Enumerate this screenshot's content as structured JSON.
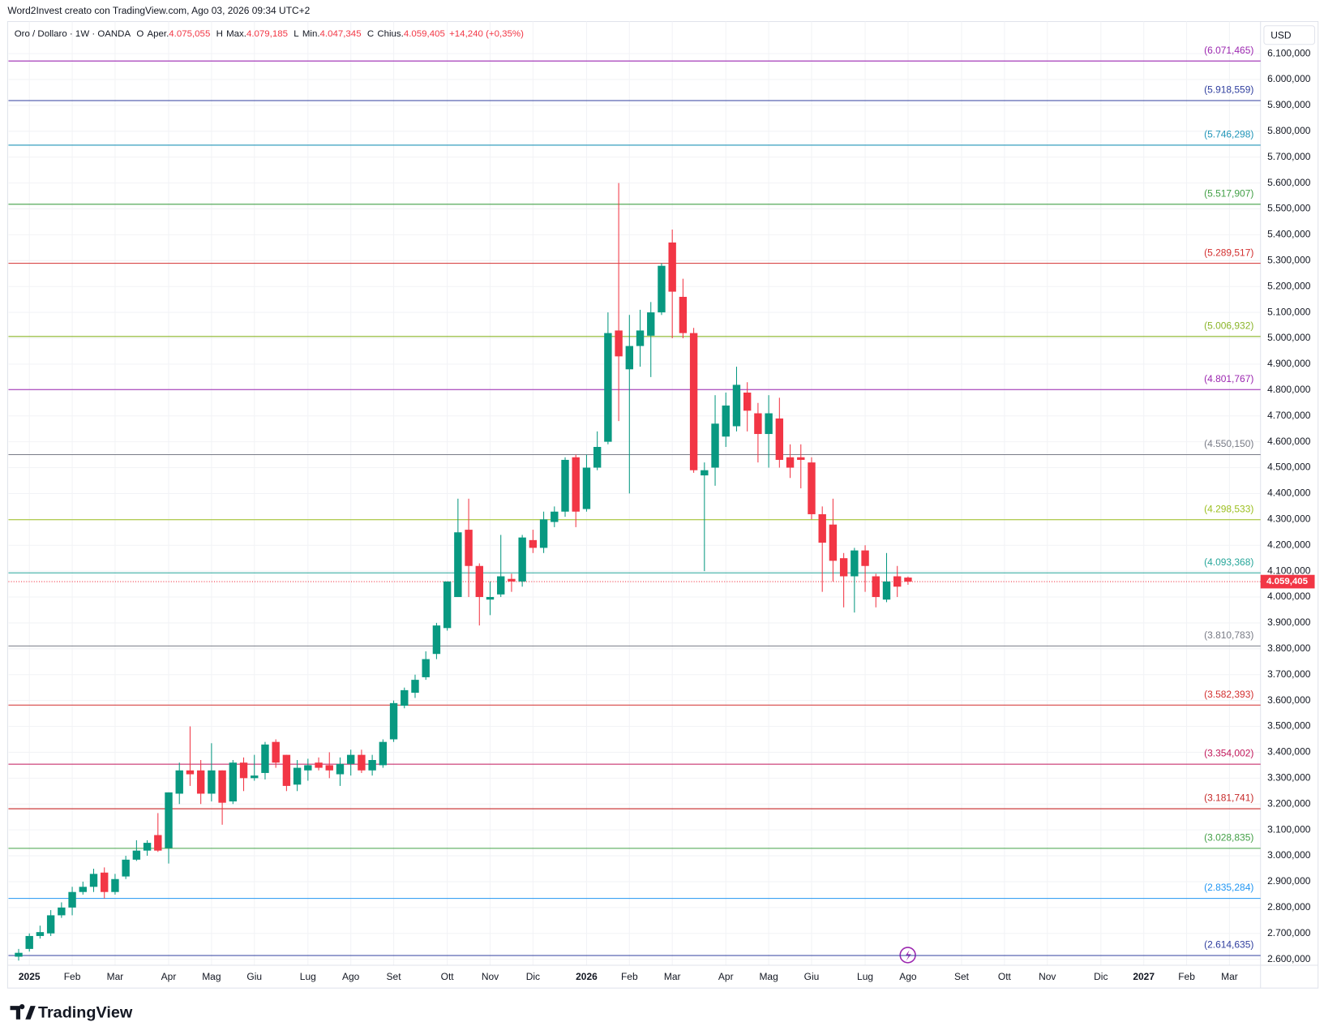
{
  "chart_data": {
    "type": "candlestick",
    "attribution": "Word2Invest creato con TradingView.com, Ago 03, 2026 09:34 UTC+2",
    "legend": {
      "name": "Oro / Dollaro · 1W · OANDA",
      "fields": [
        {
          "key": "O",
          "label": "Aper.",
          "value": "4.075,055"
        },
        {
          "key": "H",
          "label": "Max.",
          "value": "4.079,185"
        },
        {
          "key": "L",
          "label": "Min.",
          "value": "4.047,345"
        },
        {
          "key": "C",
          "label": "Chius.",
          "value": "4.059,405"
        }
      ],
      "change": "+14,240 (+0,35%)"
    },
    "currency": "USD",
    "logo": "TradingView",
    "up_color": "#089981",
    "down_color": "#f23645",
    "grid": true,
    "x": [
      0,
      1,
      2,
      3,
      4,
      5,
      6,
      7,
      8,
      9,
      10,
      11,
      12,
      13,
      14,
      15,
      16,
      17,
      18,
      19,
      20,
      21,
      22,
      23,
      24,
      25,
      26,
      27,
      28,
      29,
      30,
      31,
      32,
      33,
      34,
      35,
      36,
      37,
      38,
      39,
      40,
      41,
      42,
      43,
      44,
      45,
      46,
      47,
      48,
      49,
      50,
      51,
      52,
      53,
      54,
      55,
      56,
      57,
      58,
      59,
      60,
      61,
      62,
      63,
      64,
      65,
      66,
      67,
      68,
      69,
      70,
      71,
      72,
      73,
      74,
      75,
      76,
      77,
      78,
      79,
      80,
      81,
      82,
      83
    ],
    "open": [
      2610,
      2640,
      2690,
      2700,
      2770,
      2800,
      2860,
      2880,
      2935,
      2860,
      2920,
      2985,
      3020,
      3080,
      3030,
      3240,
      3330,
      3330,
      3240,
      3330,
      3210,
      3360,
      3300,
      3320,
      3440,
      3390,
      3275,
      3330,
      3360,
      3350,
      3315,
      3355,
      3390,
      3330,
      3350,
      3450,
      3580,
      3630,
      3690,
      3780,
      3880,
      4000,
      4260,
      4120,
      3990,
      4010,
      4070,
      4060,
      4220,
      4190,
      4290,
      4330,
      4540,
      4340,
      4500,
      4600,
      5030,
      4880,
      4970,
      5010,
      5100,
      5370,
      5160,
      5020,
      4470,
      4500,
      4620,
      4660,
      4790,
      4710,
      4630,
      4690,
      4540,
      4540,
      4520,
      4320,
      4280,
      4150,
      4080,
      4180,
      4080,
      3990,
      4080,
      4075.055
    ],
    "high": [
      2640,
      2700,
      2730,
      2790,
      2820,
      2880,
      2900,
      2950,
      2955,
      2930,
      3000,
      3060,
      3060,
      3165,
      3245,
      3360,
      3500,
      3370,
      3435,
      3330,
      3370,
      3380,
      3390,
      3440,
      3450,
      3390,
      3370,
      3375,
      3380,
      3400,
      3380,
      3410,
      3410,
      3390,
      3450,
      3600,
      3650,
      3700,
      3790,
      3900,
      4060,
      4380,
      4380,
      4130,
      4060,
      4240,
      4090,
      4240,
      4260,
      4330,
      4350,
      4540,
      4550,
      4550,
      4640,
      5100,
      5600,
      5090,
      5110,
      5140,
      5290,
      5420,
      5230,
      5040,
      4520,
      4780,
      4790,
      4890,
      4830,
      4750,
      4780,
      4770,
      4590,
      4590,
      4540,
      4350,
      4380,
      4170,
      4190,
      4200,
      4090,
      4170,
      4120,
      4079.185
    ],
    "low": [
      2595,
      2630,
      2680,
      2690,
      2760,
      2770,
      2850,
      2860,
      2835,
      2850,
      2910,
      2980,
      3000,
      3015,
      2970,
      3200,
      3270,
      3200,
      3210,
      3120,
      3200,
      3250,
      3290,
      3295,
      3340,
      3250,
      3250,
      3290,
      3330,
      3300,
      3270,
      3310,
      3320,
      3310,
      3340,
      3440,
      3570,
      3610,
      3680,
      3760,
      3870,
      4000,
      4000,
      3890,
      3930,
      4000,
      4020,
      4040,
      4170,
      4170,
      4270,
      4310,
      4270,
      4330,
      4490,
      4590,
      4680,
      4400,
      4890,
      4850,
      5090,
      5000,
      5000,
      4480,
      4100,
      4430,
      4580,
      4640,
      4640,
      4520,
      4500,
      4500,
      4460,
      4420,
      4300,
      4020,
      4060,
      3960,
      3940,
      4020,
      3960,
      3980,
      4000,
      4047.345
    ],
    "close": [
      2625,
      2690,
      2705,
      2770,
      2800,
      2860,
      2880,
      2930,
      2860,
      2910,
      2985,
      3020,
      3050,
      3020,
      3245,
      3330,
      3315,
      3240,
      3330,
      3205,
      3360,
      3300,
      3310,
      3430,
      3360,
      3270,
      3340,
      3350,
      3340,
      3330,
      3355,
      3390,
      3330,
      3370,
      3440,
      3590,
      3640,
      3680,
      3760,
      3890,
      4060,
      4250,
      4120,
      4000,
      4000,
      4080,
      4060,
      4230,
      4190,
      4300,
      4330,
      4530,
      4330,
      4500,
      4580,
      5020,
      4930,
      4970,
      5030,
      5100,
      5280,
      5180,
      5020,
      4490,
      4490,
      4670,
      4740,
      4820,
      4720,
      4630,
      4710,
      4530,
      4500,
      4530,
      4320,
      4210,
      4140,
      4080,
      4180,
      4120,
      4000,
      4060,
      4040,
      4059.405
    ],
    "last_price": {
      "value": 4059.405,
      "label": "4.059,405"
    },
    "xlim": [
      -0.95,
      115.9
    ],
    "xticks": [
      {
        "value": 1,
        "label": "2025"
      },
      {
        "value": 5,
        "label": "Feb"
      },
      {
        "value": 9,
        "label": "Mar"
      },
      {
        "value": 14,
        "label": "Apr"
      },
      {
        "value": 18,
        "label": "Mag"
      },
      {
        "value": 22,
        "label": "Giu"
      },
      {
        "value": 27,
        "label": "Lug"
      },
      {
        "value": 31,
        "label": "Ago"
      },
      {
        "value": 35,
        "label": "Set"
      },
      {
        "value": 40,
        "label": "Ott"
      },
      {
        "value": 44,
        "label": "Nov"
      },
      {
        "value": 48,
        "label": "Dic"
      },
      {
        "value": 53,
        "label": "2026"
      },
      {
        "value": 57,
        "label": "Feb"
      },
      {
        "value": 61,
        "label": "Mar"
      },
      {
        "value": 66,
        "label": "Apr"
      },
      {
        "value": 70,
        "label": "Mag"
      },
      {
        "value": 74,
        "label": "Giu"
      },
      {
        "value": 79,
        "label": "Lug"
      },
      {
        "value": 83,
        "label": "Ago"
      },
      {
        "value": 88,
        "label": "Set"
      },
      {
        "value": 92,
        "label": "Ott"
      },
      {
        "value": 96,
        "label": "Nov"
      },
      {
        "value": 101,
        "label": "Dic"
      },
      {
        "value": 105,
        "label": "2027"
      },
      {
        "value": 109,
        "label": "Feb"
      },
      {
        "value": 113,
        "label": "Mar"
      }
    ],
    "ylim": [
      2577,
      6224
    ],
    "yticks": [
      {
        "value": 2600,
        "label": "2.600,000"
      },
      {
        "value": 2700,
        "label": "2.700,000"
      },
      {
        "value": 2800,
        "label": "2.800,000"
      },
      {
        "value": 2900,
        "label": "2.900,000"
      },
      {
        "value": 3000,
        "label": "3.000,000"
      },
      {
        "value": 3100,
        "label": "3.100,000"
      },
      {
        "value": 3200,
        "label": "3.200,000"
      },
      {
        "value": 3300,
        "label": "3.300,000"
      },
      {
        "value": 3400,
        "label": "3.400,000"
      },
      {
        "value": 3500,
        "label": "3.500,000"
      },
      {
        "value": 3600,
        "label": "3.600,000"
      },
      {
        "value": 3700,
        "label": "3.700,000"
      },
      {
        "value": 3800,
        "label": "3.800,000"
      },
      {
        "value": 3900,
        "label": "3.900,000"
      },
      {
        "value": 4000,
        "label": "4.000,000"
      },
      {
        "value": 4100,
        "label": "4.100,000"
      },
      {
        "value": 4200,
        "label": "4.200,000"
      },
      {
        "value": 4300,
        "label": "4.300,000"
      },
      {
        "value": 4400,
        "label": "4.400,000"
      },
      {
        "value": 4500,
        "label": "4.500,000"
      },
      {
        "value": 4600,
        "label": "4.600,000"
      },
      {
        "value": 4700,
        "label": "4.700,000"
      },
      {
        "value": 4800,
        "label": "4.800,000"
      },
      {
        "value": 4900,
        "label": "4.900,000"
      },
      {
        "value": 5000,
        "label": "5.000,000"
      },
      {
        "value": 5100,
        "label": "5.100,000"
      },
      {
        "value": 5200,
        "label": "5.200,000"
      },
      {
        "value": 5300,
        "label": "5.300,000"
      },
      {
        "value": 5400,
        "label": "5.400,000"
      },
      {
        "value": 5500,
        "label": "5.500,000"
      },
      {
        "value": 5600,
        "label": "5.600,000"
      },
      {
        "value": 5700,
        "label": "5.700,000"
      },
      {
        "value": 5800,
        "label": "5.800,000"
      },
      {
        "value": 5900,
        "label": "5.900,000"
      },
      {
        "value": 6000,
        "label": "6.000,000"
      },
      {
        "value": 6100,
        "label": "6.100,000"
      }
    ],
    "levels": [
      {
        "value": 6071.465,
        "label": "(6.071,465)",
        "color": "#9c27b0"
      },
      {
        "value": 5918.559,
        "label": "(5.918,559)",
        "color": "#303f9f"
      },
      {
        "value": 5746.298,
        "label": "(5.746,298)",
        "color": "#2195b8"
      },
      {
        "value": 5517.907,
        "label": "(5.517,907)",
        "color": "#43a047"
      },
      {
        "value": 5289.517,
        "label": "(5.289,517)",
        "color": "#d32f2f"
      },
      {
        "value": 5006.932,
        "label": "(5.006,932)",
        "color": "#8bb52a"
      },
      {
        "value": 4801.767,
        "label": "(4.801,767)",
        "color": "#9c27b0"
      },
      {
        "value": 4550.15,
        "label": "(4.550,150)",
        "color": "#787b86"
      },
      {
        "value": 4298.533,
        "label": "(4.298,533)",
        "color": "#9cbf1f"
      },
      {
        "value": 4093.368,
        "label": "(4.093,368)",
        "color": "#26a69a"
      },
      {
        "value": 3810.783,
        "label": "(3.810,783)",
        "color": "#787b86"
      },
      {
        "value": 3582.393,
        "label": "(3.582,393)",
        "color": "#d32f2f"
      },
      {
        "value": 3354.002,
        "label": "(3.354,002)",
        "color": "#c2185b"
      },
      {
        "value": 3181.741,
        "label": "(3.181,741)",
        "color": "#c62828"
      },
      {
        "value": 3028.835,
        "label": "(3.028,835)",
        "color": "#43a047"
      },
      {
        "value": 2835.284,
        "label": "(2.835,284)",
        "color": "#2196f3"
      },
      {
        "value": 2614.635,
        "label": "(2.614,635)",
        "color": "#303f9f"
      }
    ]
  }
}
